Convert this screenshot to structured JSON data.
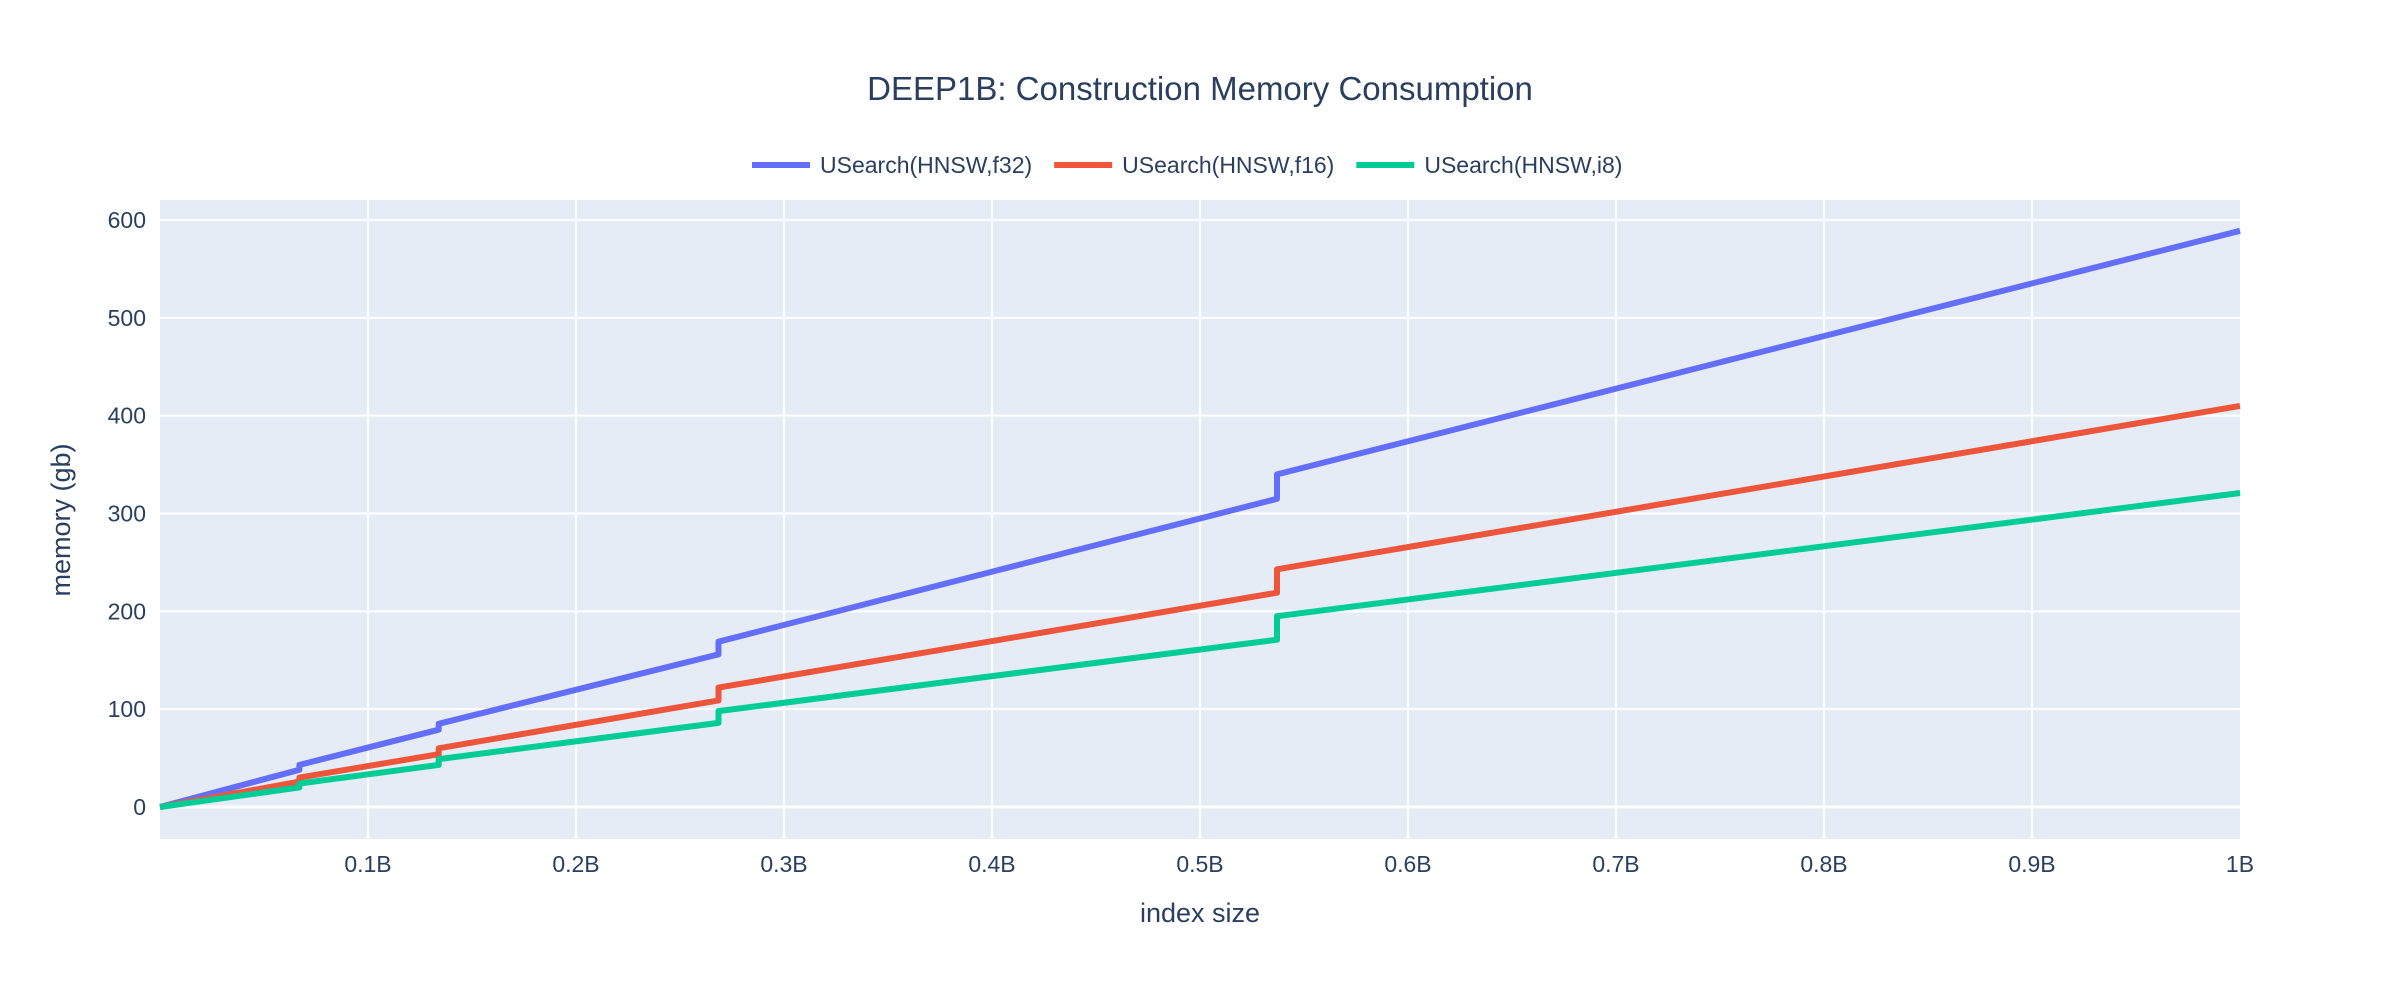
{
  "chart_data": {
    "type": "line",
    "title": "DEEP1B: Construction Memory Consumption",
    "xlabel": "index size",
    "ylabel": "memory (gb)",
    "xlim": [
      0,
      1000000000
    ],
    "ylim": [
      -32,
      600
    ],
    "x_ticks": [
      {
        "value": 100000000,
        "label": "0.1B"
      },
      {
        "value": 200000000,
        "label": "0.2B"
      },
      {
        "value": 300000000,
        "label": "0.3B"
      },
      {
        "value": 400000000,
        "label": "0.4B"
      },
      {
        "value": 500000000,
        "label": "0.5B"
      },
      {
        "value": 600000000,
        "label": "0.6B"
      },
      {
        "value": 700000000,
        "label": "0.7B"
      },
      {
        "value": 800000000,
        "label": "0.8B"
      },
      {
        "value": 900000000,
        "label": "0.9B"
      },
      {
        "value": 1000000000,
        "label": "1B"
      }
    ],
    "y_ticks": [
      {
        "value": 0,
        "label": "0"
      },
      {
        "value": 100,
        "label": "100"
      },
      {
        "value": 200,
        "label": "200"
      },
      {
        "value": 300,
        "label": "300"
      },
      {
        "value": 400,
        "label": "400"
      },
      {
        "value": 500,
        "label": "500"
      },
      {
        "value": 600,
        "label": "600"
      }
    ],
    "grid": true,
    "legend_position": "top-center",
    "plot_background": "#e5ecf6",
    "series": [
      {
        "name": "USearch(HNSW,f32)",
        "color": "#636efa",
        "points": [
          [
            0,
            0
          ],
          [
            67000000,
            38
          ],
          [
            67000000,
            43
          ],
          [
            134000000,
            79
          ],
          [
            134000000,
            85
          ],
          [
            268500000,
            156
          ],
          [
            268500000,
            169
          ],
          [
            537000000,
            315
          ],
          [
            537000000,
            340
          ],
          [
            1000000000,
            589
          ]
        ]
      },
      {
        "name": "USearch(HNSW,f16)",
        "color": "#ef553b",
        "points": [
          [
            0,
            0
          ],
          [
            67000000,
            26
          ],
          [
            67000000,
            30
          ],
          [
            134000000,
            54
          ],
          [
            134000000,
            60
          ],
          [
            268500000,
            109
          ],
          [
            268500000,
            122
          ],
          [
            537000000,
            219
          ],
          [
            537000000,
            243
          ],
          [
            1000000000,
            410
          ]
        ]
      },
      {
        "name": "USearch(HNSW,i8)",
        "color": "#00cc96",
        "points": [
          [
            0,
            0
          ],
          [
            33500000,
            10
          ],
          [
            67000000,
            20
          ],
          [
            67000000,
            24
          ],
          [
            134000000,
            43
          ],
          [
            134000000,
            49
          ],
          [
            268500000,
            86
          ],
          [
            268500000,
            98
          ],
          [
            537000000,
            171
          ],
          [
            537000000,
            195
          ],
          [
            1000000000,
            321
          ]
        ]
      }
    ]
  }
}
